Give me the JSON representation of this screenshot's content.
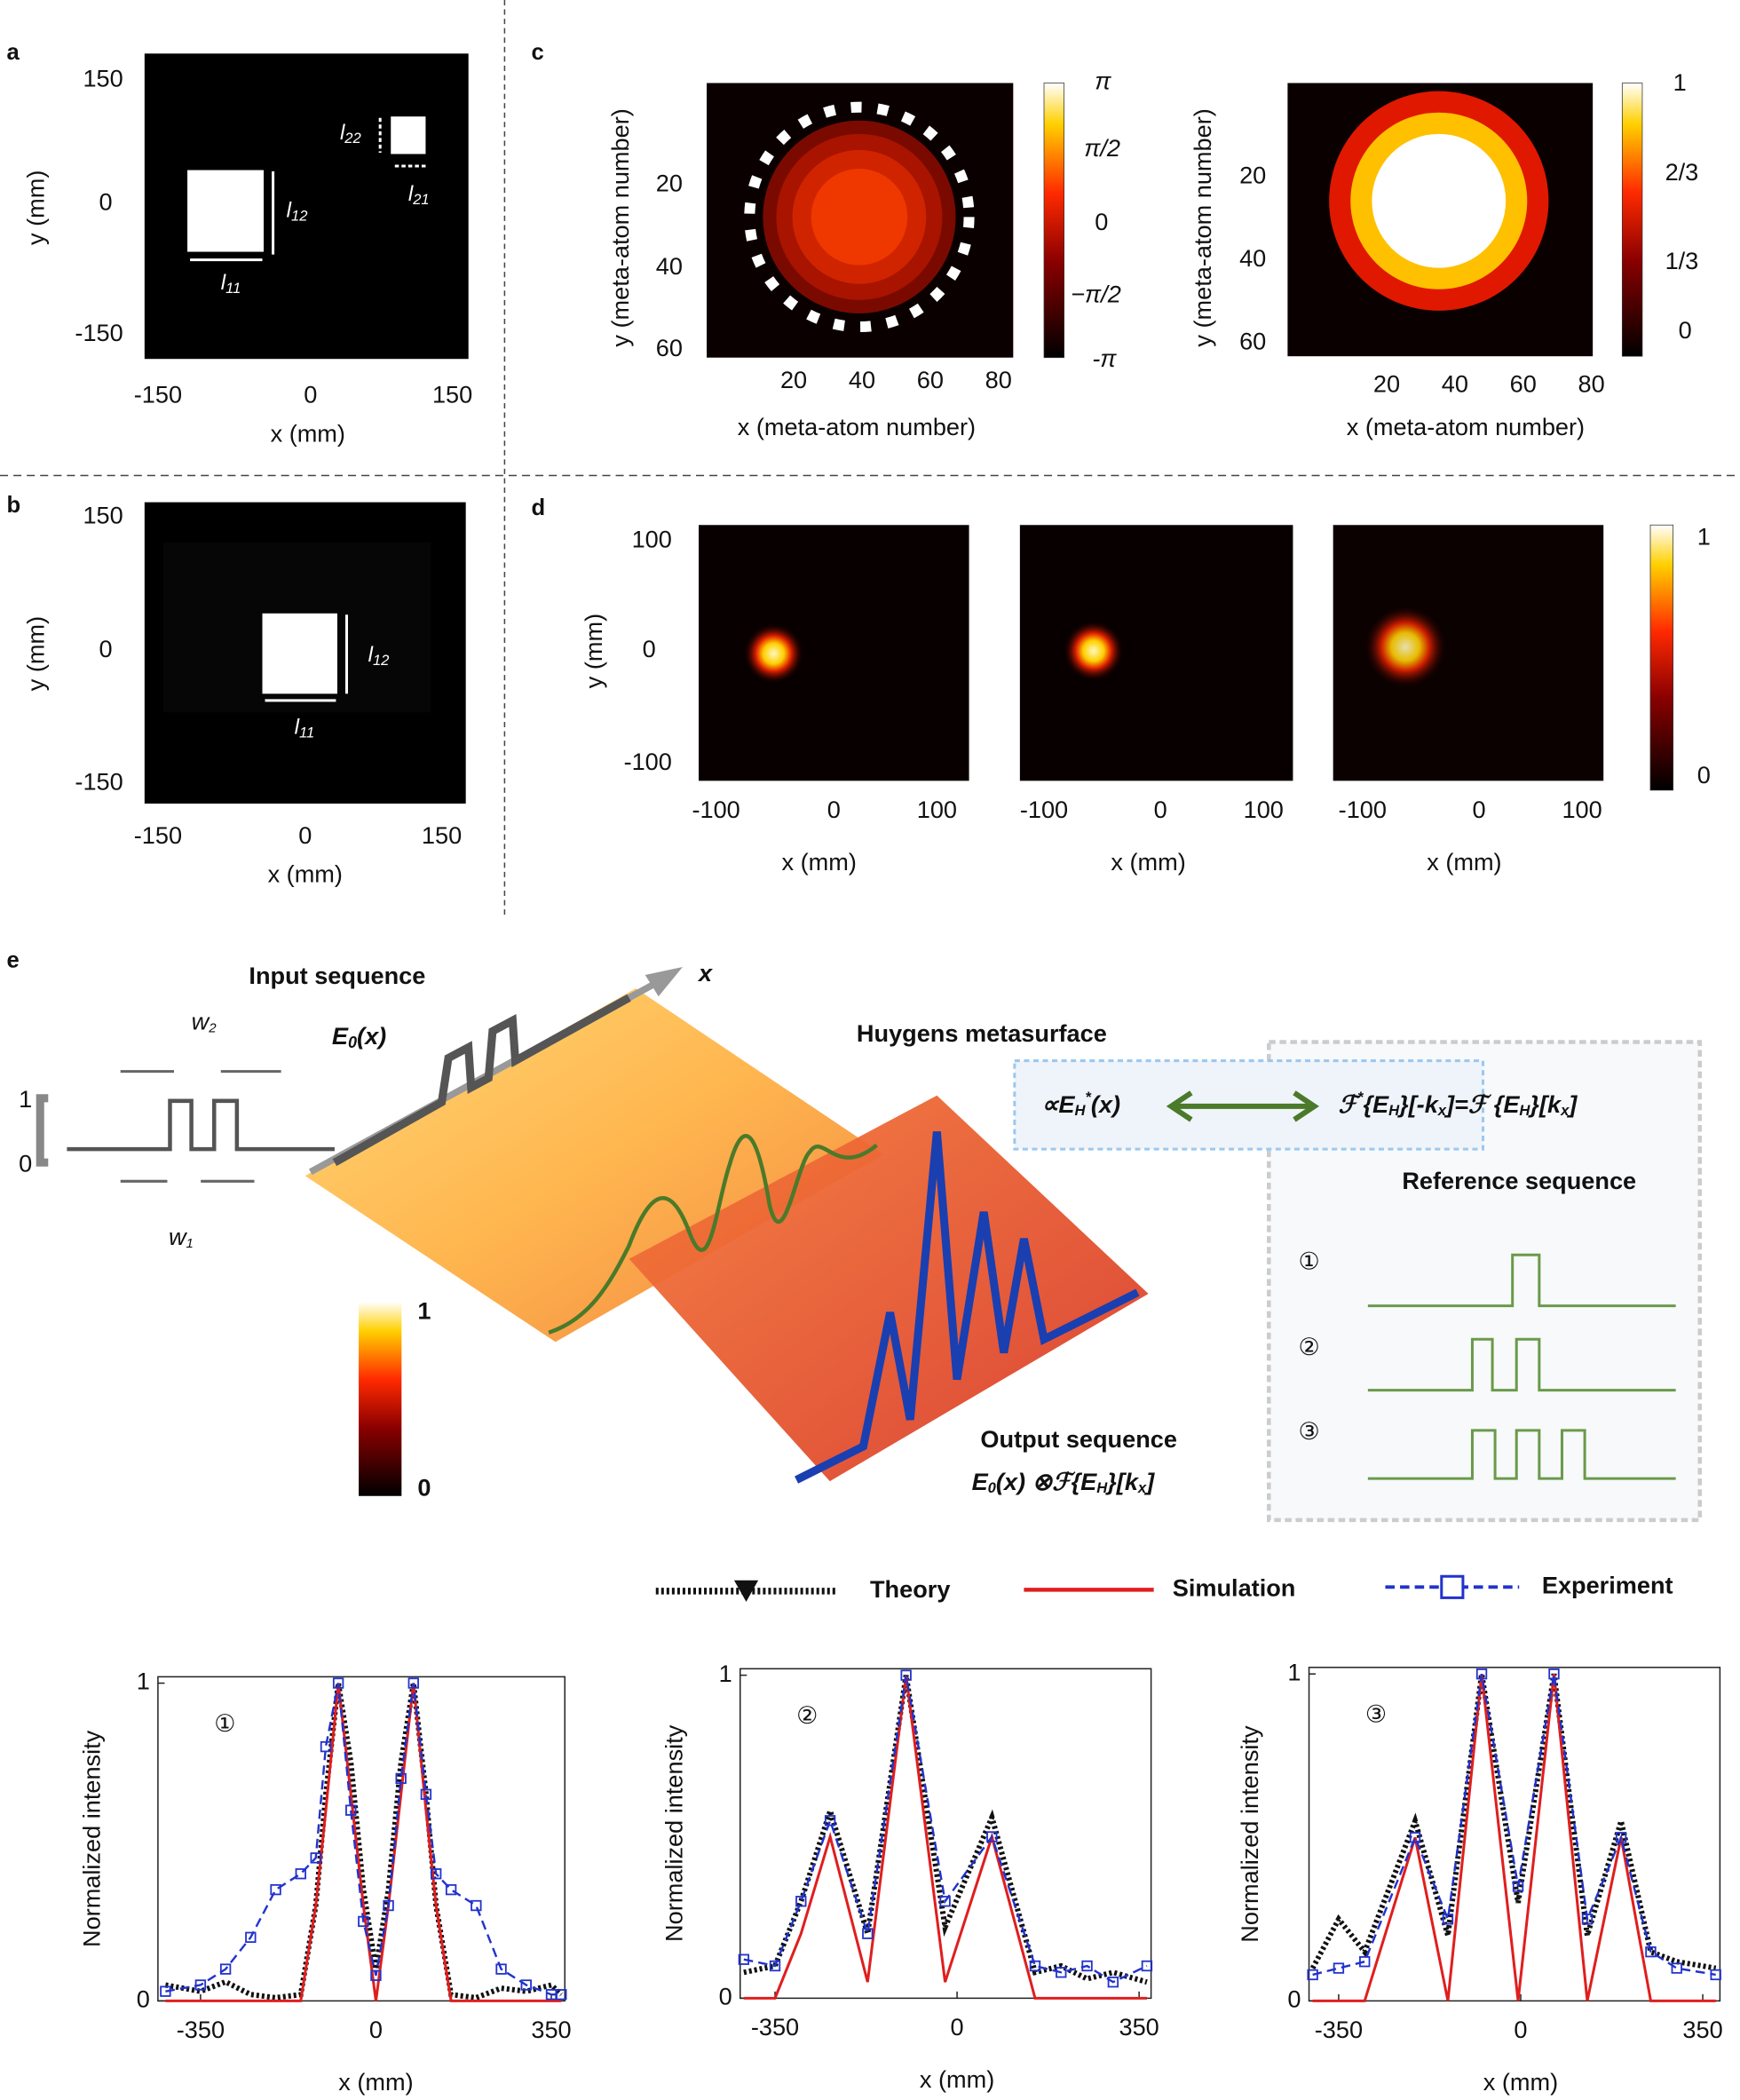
{
  "panel_a": {
    "label": "a",
    "y_ticks": [
      150,
      0,
      -150
    ],
    "x_ticks": [
      -150,
      0,
      150
    ],
    "y_axis": "y (mm)",
    "x_axis": "x (mm)",
    "annotations": [
      {
        "base": "l",
        "sub": "11"
      },
      {
        "base": "l",
        "sub": "12"
      },
      {
        "base": "l",
        "sub": "21"
      },
      {
        "base": "l",
        "sub": "22"
      }
    ]
  },
  "panel_b": {
    "label": "b",
    "y_ticks": [
      150,
      0,
      -150
    ],
    "x_ticks": [
      -150,
      0,
      150
    ],
    "y_axis": "y (mm)",
    "x_axis": "x (mm)",
    "annotations": [
      {
        "base": "l",
        "sub": "11"
      },
      {
        "base": "l",
        "sub": "12"
      }
    ]
  },
  "panel_c": {
    "label": "c",
    "phase_map": {
      "y_ticks": [
        20,
        40,
        60
      ],
      "x_ticks": [
        20,
        40,
        60,
        80
      ],
      "y_axis": "y (meta-atom number)",
      "x_axis": "x (meta-atom number)",
      "colorbar_ticks": [
        "π",
        "π/2",
        "0",
        "−π/2",
        "-π"
      ]
    },
    "amplitude_map": {
      "y_ticks": [
        20,
        40,
        60
      ],
      "x_ticks": [
        20,
        40,
        60,
        80
      ],
      "y_axis": "y (meta-atom number)",
      "x_axis": "x (meta-atom number)",
      "colorbar_ticks": [
        1,
        {
          "value": 0.6667,
          "label": "2/3"
        },
        {
          "value": 0.3333,
          "label": "1/3"
        },
        0
      ]
    }
  },
  "panel_d": {
    "label": "d",
    "y_ticks": [
      100,
      0,
      -100
    ],
    "x_ticks": [
      -100,
      0,
      100
    ],
    "y_axis": "y (mm)",
    "x_axis": "x (mm)",
    "colorbar_ticks": [
      1,
      0
    ]
  },
  "panel_e": {
    "label": "e",
    "input_title": "Input sequence",
    "input_field": [
      "E",
      "0",
      "(x)"
    ],
    "axis_x": "x",
    "level_ticks": [
      1,
      0
    ],
    "widths": [
      {
        "base": "w",
        "sub": "2"
      },
      {
        "base": "w",
        "sub": "1"
      }
    ],
    "metasurface_title": "Huygens metasurface",
    "formula_left": [
      "∝E",
      "H",
      "*",
      "(x)"
    ],
    "formula_right": [
      "ℱ",
      "*",
      "{E",
      "H",
      "}[-k",
      "x",
      "]=ℱ {E",
      "H",
      "}[k",
      "x",
      "]"
    ],
    "reference_title": "Reference sequence",
    "reference_numbers": [
      "①",
      "②",
      "③"
    ],
    "output_title": "Output sequence",
    "output_formula": [
      "E",
      "0",
      "(x) ⊗ℱ{E",
      "H",
      "}[k",
      "x",
      "]"
    ],
    "colorbar_ticks": [
      1,
      0
    ]
  },
  "chart_data": [
    {
      "type": "line",
      "annotation": "①",
      "x_label": "x (mm)",
      "y_label": "Normalized intensity",
      "xlim": [
        -435,
        377
      ],
      "ylim": [
        0,
        1.02
      ],
      "xticks": [
        -350,
        0,
        350
      ],
      "yticks": [
        0,
        1
      ],
      "x": [
        -420,
        -350,
        -300,
        -250,
        -200,
        -150,
        -120,
        -100,
        -75,
        -50,
        -25,
        0,
        25,
        50,
        75,
        100,
        120,
        150,
        200,
        250,
        300,
        350,
        370
      ],
      "series": [
        {
          "name": "Theory",
          "color": "#111111",
          "style": "dotted",
          "values": [
            0.05,
            0.03,
            0.06,
            0.02,
            0.01,
            0.02,
            0.3,
            0.65,
            1.0,
            0.75,
            0.35,
            0.1,
            0.35,
            0.75,
            1.0,
            0.65,
            0.3,
            0.02,
            0.01,
            0.04,
            0.03,
            0.05,
            0.02
          ]
        },
        {
          "name": "Simulation",
          "color": "#e01e1e",
          "style": "solid",
          "values": [
            0,
            0,
            0,
            0,
            0,
            0,
            0.3,
            0.6,
            1.0,
            0.65,
            0.3,
            0,
            0.3,
            0.65,
            1.0,
            0.6,
            0.3,
            0,
            0,
            0,
            0,
            0,
            0
          ]
        },
        {
          "name": "Experiment",
          "color": "#2233cc",
          "style": "dashed",
          "values": [
            0.03,
            0.05,
            0.1,
            0.2,
            0.35,
            0.4,
            0.45,
            0.8,
            1.0,
            0.6,
            0.25,
            0.08,
            0.3,
            0.7,
            1.0,
            0.65,
            0.4,
            0.35,
            0.3,
            0.1,
            0.05,
            0.02,
            0.02
          ]
        }
      ]
    },
    {
      "type": "line",
      "annotation": "②",
      "x_label": "x (mm)",
      "y_label": "Normalized intensity",
      "xlim": [
        -417,
        373
      ],
      "ylim": [
        0,
        1.02
      ],
      "xticks": [
        -350,
        0,
        350
      ],
      "yticks": [
        0,
        1
      ],
      "x": [
        -410,
        -350,
        -300,
        -244,
        -172,
        -98,
        -23,
        67,
        150,
        200,
        250,
        300,
        365
      ],
      "series": [
        {
          "name": "Theory",
          "color": "#111111",
          "style": "dotted",
          "values": [
            0.08,
            0.1,
            0.3,
            0.58,
            0.2,
            1.0,
            0.22,
            0.56,
            0.08,
            0.1,
            0.06,
            0.08,
            0.05
          ]
        },
        {
          "name": "Simulation",
          "color": "#e01e1e",
          "style": "solid",
          "values": [
            0,
            0,
            0.2,
            0.5,
            0.05,
            1.0,
            0.05,
            0.5,
            0,
            0,
            0,
            0,
            0
          ]
        },
        {
          "name": "Experiment",
          "color": "#2233cc",
          "style": "dashed",
          "values": [
            0.12,
            0.1,
            0.3,
            0.55,
            0.2,
            1.0,
            0.3,
            0.5,
            0.1,
            0.08,
            0.1,
            0.05,
            0.1
          ]
        }
      ]
    },
    {
      "type": "line",
      "annotation": "③",
      "x_label": "x (mm)",
      "y_label": "Normalized intensity",
      "xlim": [
        -407,
        383
      ],
      "ylim": [
        0,
        1.02
      ],
      "xticks": [
        -350,
        0,
        350
      ],
      "yticks": [
        0,
        1
      ],
      "x": [
        -400,
        -350,
        -300,
        -203,
        -140,
        -75,
        -5,
        64,
        128,
        193,
        250,
        300,
        375
      ],
      "series": [
        {
          "name": "Theory",
          "color": "#111111",
          "style": "dotted",
          "values": [
            0.1,
            0.25,
            0.15,
            0.55,
            0.2,
            1.0,
            0.3,
            1.0,
            0.2,
            0.55,
            0.15,
            0.12,
            0.1
          ]
        },
        {
          "name": "Simulation",
          "color": "#e01e1e",
          "style": "solid",
          "values": [
            0,
            0,
            0,
            0.5,
            0,
            1.0,
            0,
            1.0,
            0,
            0.5,
            0,
            0,
            0
          ]
        },
        {
          "name": "Experiment",
          "color": "#2233cc",
          "style": "dashed",
          "values": [
            0.08,
            0.1,
            0.12,
            0.5,
            0.25,
            1.0,
            0.35,
            1.0,
            0.25,
            0.5,
            0.15,
            0.1,
            0.08
          ]
        }
      ]
    }
  ]
}
